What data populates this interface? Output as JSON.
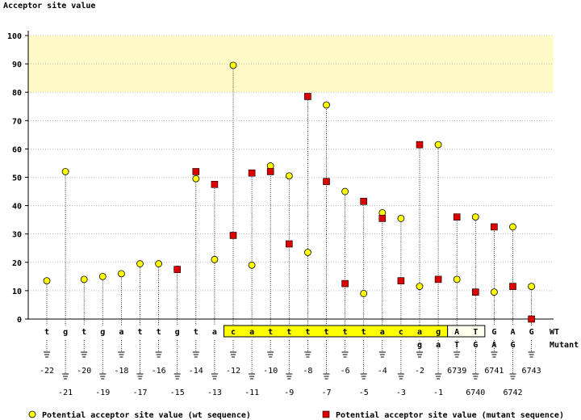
{
  "chart_data": {
    "type": "scatter",
    "title": "",
    "ylabel": "Acceptor site value",
    "ylim": [
      0,
      100
    ],
    "yticks": [
      0,
      10,
      20,
      30,
      40,
      50,
      60,
      70,
      80,
      90,
      100
    ],
    "highlight_band": [
      80,
      100
    ],
    "positions": [
      "-22",
      "-21",
      "-20",
      "-19",
      "-18",
      "-17",
      "-16",
      "-15",
      "-14",
      "-13",
      "-12",
      "-11",
      "-10",
      "-9",
      "-8",
      "-7",
      "-6",
      "-5",
      "-4",
      "-3",
      "-2",
      "-1",
      "6739",
      "6740",
      "6741",
      "6742",
      "6743"
    ],
    "wt_sequence": [
      "t",
      "g",
      "t",
      "g",
      "a",
      "t",
      "t",
      "g",
      "t",
      "a",
      "c",
      "a",
      "t",
      "t",
      "t",
      "t",
      "t",
      "t",
      "a",
      "c",
      "a",
      "g",
      "A",
      "T",
      "G",
      "A",
      "G"
    ],
    "mutant_sequence": [
      "",
      "",
      "",
      "",
      "",
      "",
      "",
      "",
      "",
      "",
      "",
      "",
      "",
      "",
      "",
      "",
      "",
      "",
      "",
      "",
      "g",
      "a",
      "T",
      "G",
      "A",
      "G",
      ""
    ],
    "row_labels": {
      "wt": "WT",
      "mutant": "Mutant"
    },
    "series": [
      {
        "name": "Potential acceptor site value (wt sequence)",
        "marker": "circle",
        "color": "#ffff00",
        "values": [
          13.5,
          52,
          14,
          15,
          16,
          19.5,
          19.5,
          17.5,
          49.5,
          21,
          89.5,
          19,
          54,
          50.5,
          23.5,
          75.5,
          45,
          9,
          37.5,
          35.5,
          11.5,
          61.5,
          14,
          36,
          9.5,
          32.5,
          11.5
        ]
      },
      {
        "name": "Potential acceptor site value (mutant sequence)",
        "marker": "square",
        "color": "#dd0000",
        "values": [
          null,
          null,
          null,
          null,
          null,
          null,
          null,
          17.5,
          52,
          47.5,
          29.5,
          51.5,
          52,
          26.5,
          78.5,
          48.5,
          12.5,
          41.5,
          35.5,
          13.5,
          61.5,
          14,
          36,
          9.5,
          32.5,
          11.5,
          0
        ]
      }
    ],
    "legend_position": "bottom"
  },
  "colors": {
    "highlight": "#fffac8",
    "sequence_box": "#ffff00",
    "mutant_text": "#0000dd"
  }
}
